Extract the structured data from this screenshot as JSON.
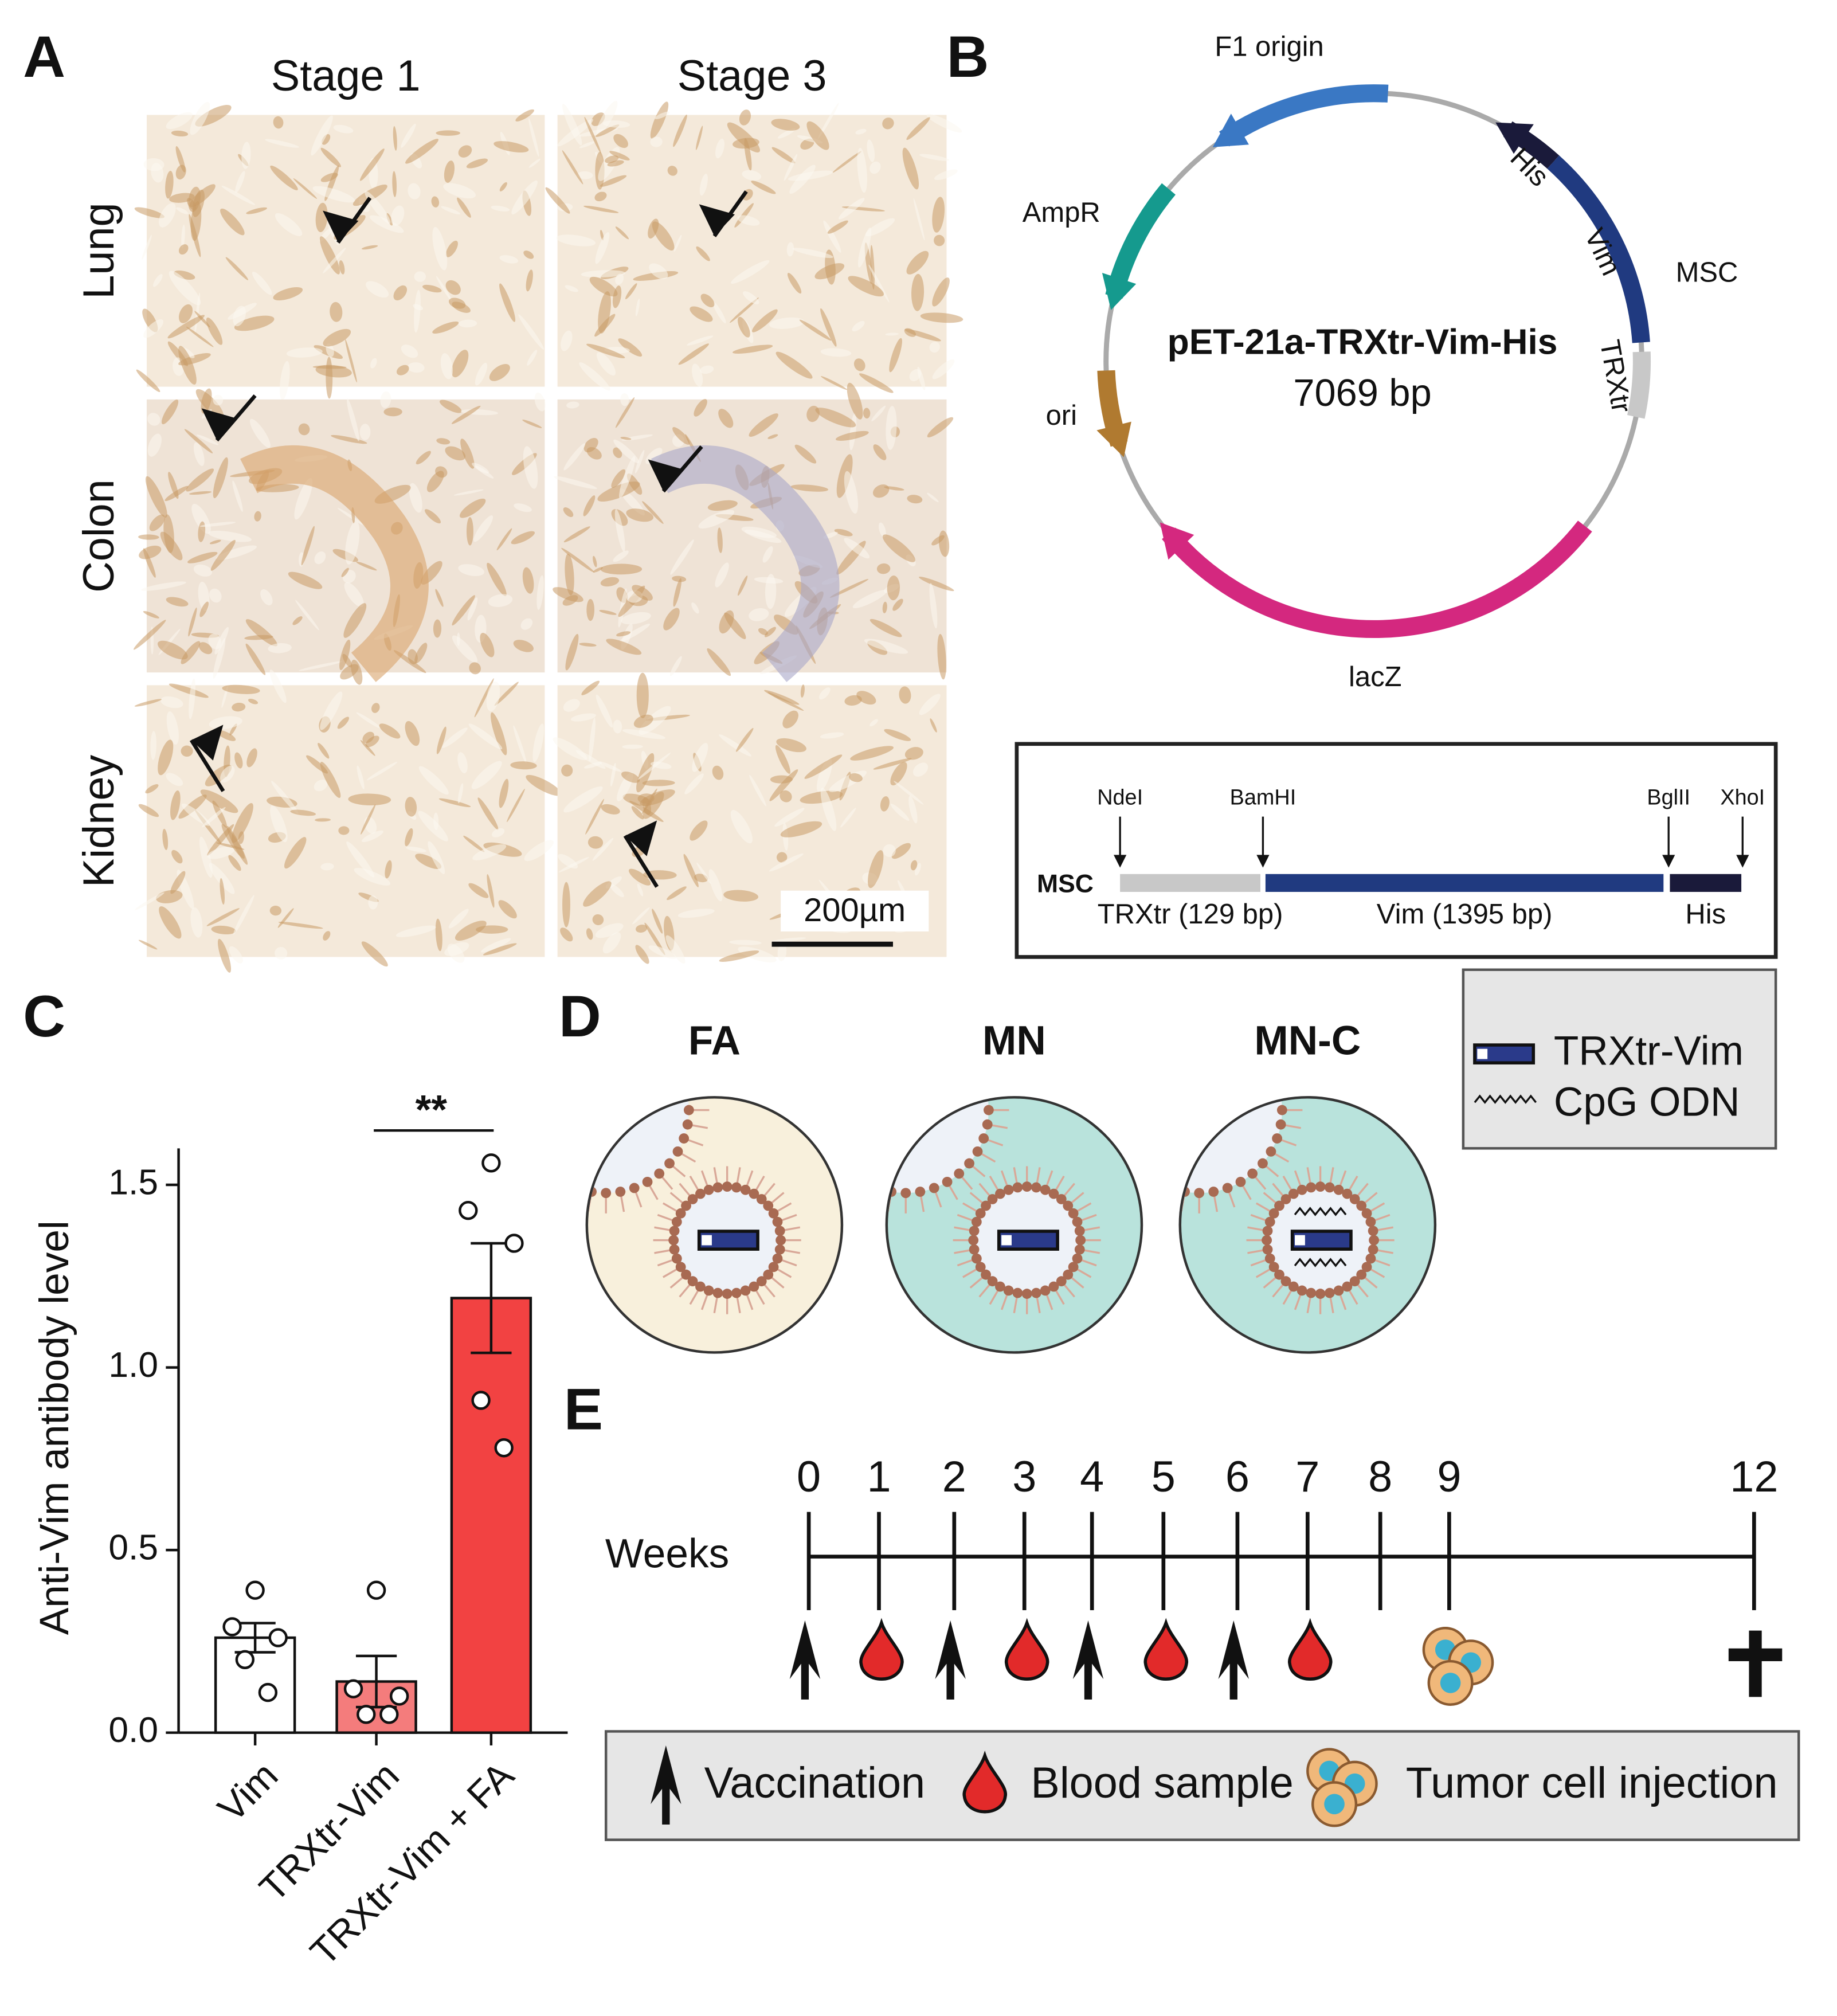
{
  "panel_a": {
    "label": "A",
    "columns": [
      "Stage 1",
      "Stage 3"
    ],
    "rows": [
      "Lung",
      "Colon",
      "Kidney"
    ],
    "scale_bar": "200µm"
  },
  "panel_b": {
    "label": "B",
    "plasmid_name": "pET-21a-TRXtr-Vim-His",
    "plasmid_size": "7069 bp",
    "features": [
      "F1 origin",
      "AmpR",
      "ori",
      "lacZ",
      "His",
      "Vim",
      "MSC",
      "TRXtr"
    ],
    "msc": {
      "label": "MSC",
      "sites": [
        "NdeI",
        "BamHI",
        "BglII",
        "XhoI"
      ],
      "segments": [
        "TRXtr (129 bp)",
        "Vim (1395 bp)",
        "His"
      ]
    }
  },
  "chart_data": {
    "type": "bar",
    "panel_label": "C",
    "ylabel": "Anti-Vim antibody level",
    "categories": [
      "Vim",
      "TRXtr-Vim",
      "TRXtr-Vim + FA"
    ],
    "values": [
      0.26,
      0.14,
      1.19
    ],
    "errors": [
      0.04,
      0.07,
      0.15
    ],
    "points": [
      [
        0.39,
        0.29,
        0.26,
        0.2,
        0.11
      ],
      [
        0.39,
        0.12,
        0.1,
        0.05,
        0.05
      ],
      [
        1.56,
        1.43,
        1.34,
        0.91,
        0.78
      ]
    ],
    "colors": [
      "#ffffff",
      "#f47c7c",
      "#f24242"
    ],
    "ylim": [
      0,
      1.6
    ],
    "yticks": [
      {
        "value": 0,
        "label": "0.0"
      },
      0.5,
      {
        "value": 1,
        "label": "1.0"
      },
      1.5
    ],
    "significance": "**"
  },
  "panel_d": {
    "label": "D",
    "titles": [
      "FA",
      "MN",
      "MN-C"
    ],
    "legend": [
      "TRXtr-Vim",
      "CpG ODN"
    ]
  },
  "panel_e": {
    "label": "E",
    "axis_label": "Weeks",
    "weeks": [
      "0",
      "1",
      "2",
      "3",
      "4",
      "5",
      "6",
      "7",
      "8",
      "9",
      "12"
    ],
    "legend": [
      "Vaccination",
      "Blood sample",
      "Tumor cell injection"
    ]
  }
}
